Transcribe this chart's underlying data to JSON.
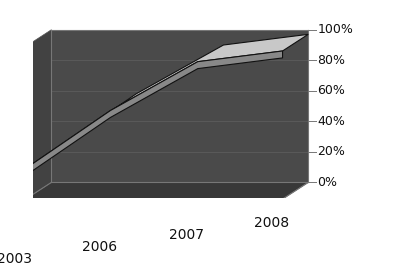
{
  "years": [
    "2003",
    "2006",
    "2007",
    "2008"
  ],
  "values": [
    0.2,
    0.58,
    0.9,
    0.97
  ],
  "background_color": "#3d3d3d",
  "wall_color": "#4a4a4a",
  "floor_color": "#383838",
  "ribbon_side_color": "#888888",
  "ribbon_top_color": "#c8c8c8",
  "ribbon_edge_color": "#111111",
  "grid_line_color": "#5a5a5a",
  "ytick_labels": [
    "0%",
    "20%",
    "40%",
    "60%",
    "80%",
    "100%"
  ],
  "ytick_values": [
    0.0,
    0.2,
    0.4,
    0.6,
    0.8,
    1.0
  ],
  "text_color": "#111111",
  "figsize": [
    4.0,
    2.68
  ],
  "dpi": 100
}
